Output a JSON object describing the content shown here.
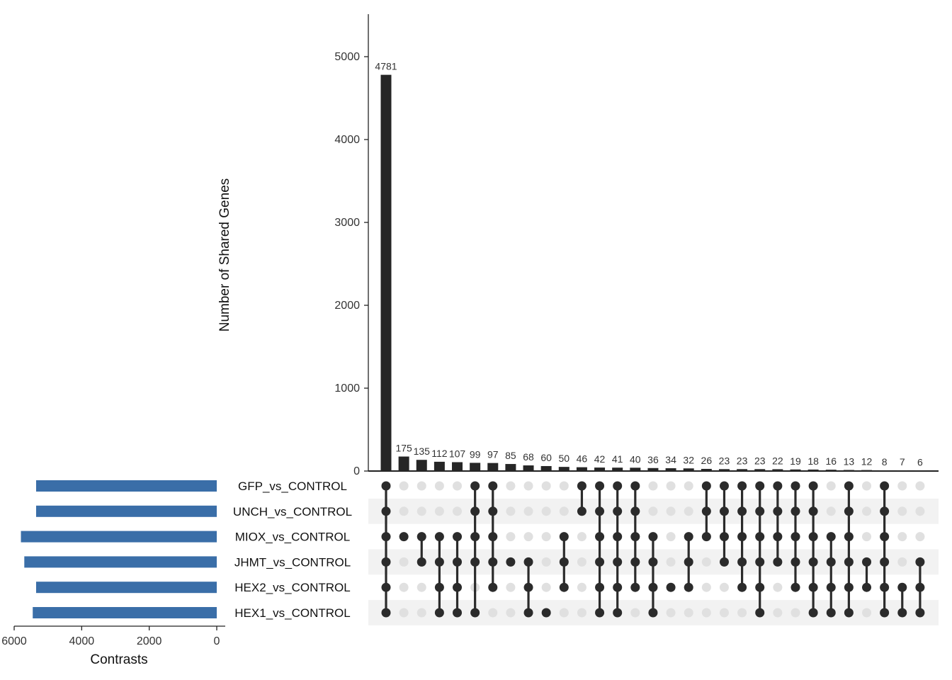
{
  "chart_data": {
    "type": "upset",
    "ylabel": "Number of Shared Genes",
    "ylim": [
      0,
      5500
    ],
    "yticks": [
      0,
      1000,
      2000,
      3000,
      4000,
      5000
    ],
    "set_size_xlabel": "Contrasts",
    "set_size_xlim": [
      6000,
      0
    ],
    "set_size_xticks": [
      6000,
      4000,
      2000,
      0
    ],
    "sets": [
      {
        "name": "GFP_vs_CONTROL",
        "size": 5350
      },
      {
        "name": "UNCH_vs_CONTROL",
        "size": 5350
      },
      {
        "name": "MIOX_vs_CONTROL",
        "size": 5800
      },
      {
        "name": "JHMT_vs_CONTROL",
        "size": 5700
      },
      {
        "name": "HEX2_vs_CONTROL",
        "size": 5350
      },
      {
        "name": "HEX1_vs_CONTROL",
        "size": 5450
      }
    ],
    "intersections": [
      {
        "count": 4781,
        "sets": [
          "GFP_vs_CONTROL",
          "UNCH_vs_CONTROL",
          "MIOX_vs_CONTROL",
          "JHMT_vs_CONTROL",
          "HEX2_vs_CONTROL",
          "HEX1_vs_CONTROL"
        ]
      },
      {
        "count": 175,
        "sets": [
          "MIOX_vs_CONTROL"
        ]
      },
      {
        "count": 135,
        "sets": [
          "MIOX_vs_CONTROL",
          "JHMT_vs_CONTROL"
        ]
      },
      {
        "count": 112,
        "sets": [
          "MIOX_vs_CONTROL",
          "JHMT_vs_CONTROL",
          "HEX2_vs_CONTROL",
          "HEX1_vs_CONTROL"
        ]
      },
      {
        "count": 107,
        "sets": [
          "MIOX_vs_CONTROL",
          "JHMT_vs_CONTROL",
          "HEX2_vs_CONTROL",
          "HEX1_vs_CONTROL"
        ]
      },
      {
        "count": 99,
        "sets": [
          "GFP_vs_CONTROL",
          "UNCH_vs_CONTROL",
          "MIOX_vs_CONTROL",
          "JHMT_vs_CONTROL",
          "HEX1_vs_CONTROL"
        ]
      },
      {
        "count": 97,
        "sets": [
          "GFP_vs_CONTROL",
          "UNCH_vs_CONTROL",
          "MIOX_vs_CONTROL",
          "JHMT_vs_CONTROL",
          "HEX2_vs_CONTROL"
        ]
      },
      {
        "count": 85,
        "sets": [
          "JHMT_vs_CONTROL"
        ]
      },
      {
        "count": 68,
        "sets": [
          "JHMT_vs_CONTROL",
          "HEX2_vs_CONTROL",
          "HEX1_vs_CONTROL"
        ]
      },
      {
        "count": 60,
        "sets": [
          "HEX1_vs_CONTROL"
        ]
      },
      {
        "count": 50,
        "sets": [
          "MIOX_vs_CONTROL",
          "JHMT_vs_CONTROL",
          "HEX2_vs_CONTROL"
        ]
      },
      {
        "count": 46,
        "sets": [
          "GFP_vs_CONTROL",
          "UNCH_vs_CONTROL"
        ]
      },
      {
        "count": 42,
        "sets": [
          "GFP_vs_CONTROL",
          "UNCH_vs_CONTROL",
          "MIOX_vs_CONTROL",
          "JHMT_vs_CONTROL",
          "HEX2_vs_CONTROL",
          "HEX1_vs_CONTROL"
        ]
      },
      {
        "count": 41,
        "sets": [
          "GFP_vs_CONTROL",
          "UNCH_vs_CONTROL",
          "MIOX_vs_CONTROL",
          "JHMT_vs_CONTROL",
          "HEX2_vs_CONTROL",
          "HEX1_vs_CONTROL"
        ]
      },
      {
        "count": 40,
        "sets": [
          "GFP_vs_CONTROL",
          "UNCH_vs_CONTROL",
          "MIOX_vs_CONTROL",
          "JHMT_vs_CONTROL",
          "HEX2_vs_CONTROL"
        ]
      },
      {
        "count": 36,
        "sets": [
          "MIOX_vs_CONTROL",
          "JHMT_vs_CONTROL",
          "HEX2_vs_CONTROL",
          "HEX1_vs_CONTROL"
        ]
      },
      {
        "count": 34,
        "sets": [
          "HEX2_vs_CONTROL"
        ]
      },
      {
        "count": 32,
        "sets": [
          "MIOX_vs_CONTROL",
          "JHMT_vs_CONTROL",
          "HEX2_vs_CONTROL"
        ]
      },
      {
        "count": 26,
        "sets": [
          "GFP_vs_CONTROL",
          "UNCH_vs_CONTROL",
          "MIOX_vs_CONTROL"
        ]
      },
      {
        "count": 23,
        "sets": [
          "GFP_vs_CONTROL",
          "UNCH_vs_CONTROL",
          "MIOX_vs_CONTROL",
          "JHMT_vs_CONTROL"
        ]
      },
      {
        "count": 23,
        "sets": [
          "GFP_vs_CONTROL",
          "UNCH_vs_CONTROL",
          "MIOX_vs_CONTROL",
          "JHMT_vs_CONTROL",
          "HEX2_vs_CONTROL"
        ]
      },
      {
        "count": 23,
        "sets": [
          "GFP_vs_CONTROL",
          "UNCH_vs_CONTROL",
          "MIOX_vs_CONTROL",
          "JHMT_vs_CONTROL",
          "HEX2_vs_CONTROL",
          "HEX1_vs_CONTROL"
        ]
      },
      {
        "count": 22,
        "sets": [
          "GFP_vs_CONTROL",
          "UNCH_vs_CONTROL",
          "MIOX_vs_CONTROL",
          "JHMT_vs_CONTROL"
        ]
      },
      {
        "count": 19,
        "sets": [
          "GFP_vs_CONTROL",
          "UNCH_vs_CONTROL",
          "MIOX_vs_CONTROL",
          "JHMT_vs_CONTROL",
          "HEX2_vs_CONTROL"
        ]
      },
      {
        "count": 18,
        "sets": [
          "GFP_vs_CONTROL",
          "UNCH_vs_CONTROL",
          "MIOX_vs_CONTROL",
          "JHMT_vs_CONTROL",
          "HEX2_vs_CONTROL",
          "HEX1_vs_CONTROL"
        ]
      },
      {
        "count": 16,
        "sets": [
          "MIOX_vs_CONTROL",
          "JHMT_vs_CONTROL",
          "HEX2_vs_CONTROL",
          "HEX1_vs_CONTROL"
        ]
      },
      {
        "count": 13,
        "sets": [
          "GFP_vs_CONTROL",
          "UNCH_vs_CONTROL",
          "MIOX_vs_CONTROL",
          "JHMT_vs_CONTROL",
          "HEX2_vs_CONTROL",
          "HEX1_vs_CONTROL"
        ]
      },
      {
        "count": 12,
        "sets": [
          "JHMT_vs_CONTROL",
          "HEX2_vs_CONTROL"
        ]
      },
      {
        "count": 8,
        "sets": [
          "GFP_vs_CONTROL",
          "UNCH_vs_CONTROL",
          "MIOX_vs_CONTROL",
          "JHMT_vs_CONTROL",
          "HEX2_vs_CONTROL",
          "HEX1_vs_CONTROL"
        ]
      },
      {
        "count": 7,
        "sets": [
          "HEX2_vs_CONTROL",
          "HEX1_vs_CONTROL"
        ]
      },
      {
        "count": 6,
        "sets": [
          "JHMT_vs_CONTROL",
          "HEX2_vs_CONTROL",
          "HEX1_vs_CONTROL"
        ]
      }
    ],
    "colors": {
      "bar": "#262626",
      "set_bar": "#3a6ea8",
      "dot_active": "#2b2b2b",
      "dot_inactive": "#e0e0e0",
      "row_stripe": "#f2f2f2"
    }
  }
}
